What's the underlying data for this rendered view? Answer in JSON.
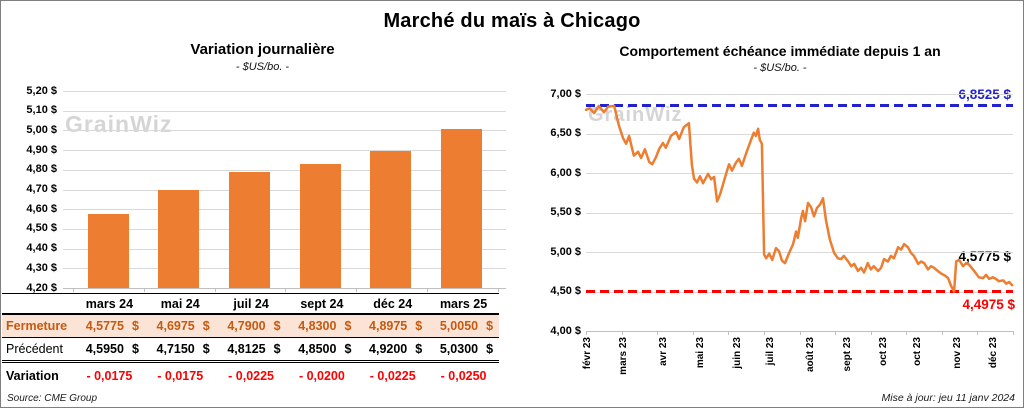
{
  "page": {
    "title": "Marché du maïs à Chicago"
  },
  "watermark": "GrainWiz",
  "footer": {
    "source": "Source: CME Group",
    "updated": "Mise à jour: jeu 11 janv 2024"
  },
  "colors": {
    "orange": "#ED7D31",
    "blue": "#2121CE",
    "red": "#FF0000",
    "grid": "#d9d9d9",
    "fermeture_bg": "#FBE4D5",
    "fermeture_text": "#C55A11",
    "watermark": "#d5d5d5"
  },
  "left_chart": {
    "title": "Variation journalière",
    "subtitle": "- $US/bo. -",
    "y_ticks": [
      "5,20 $",
      "5,10 $",
      "5,00 $",
      "4,90 $",
      "4,80 $",
      "4,70 $",
      "4,60 $",
      "4,50 $",
      "4,40 $",
      "4,30 $",
      "4,20 $"
    ]
  },
  "right_chart": {
    "title": "Comportement échéance immédiate depuis 1 an",
    "subtitle": "- $US/bo. -",
    "y_ticks": [
      "7,00 $",
      "6,50 $",
      "6,00 $",
      "5,50 $",
      "5,00 $",
      "4,50 $",
      "4,00 $"
    ],
    "max_label": "6,8525 $",
    "min_label": "4,4975 $",
    "last_label": "4,5775 $"
  },
  "table": {
    "headers": [
      "mars 24",
      "mai 24",
      "juil 24",
      "sept 24",
      "déc 24",
      "mars 25"
    ],
    "row_labels": [
      "Fermeture",
      "Précédent",
      "Variation"
    ],
    "fermeture": [
      "4,5775",
      "4,6975",
      "4,7900",
      "4,8300",
      "4,8975",
      "5,0050"
    ],
    "precedent": [
      "4,5950",
      "4,7150",
      "4,8125",
      "4,8500",
      "4,9200",
      "5,0300"
    ],
    "variation": [
      "- 0,0175",
      "- 0,0175",
      "- 0,0225",
      "- 0,0200",
      "- 0,0225",
      "- 0,0250"
    ],
    "currency": "$"
  },
  "chart_data": [
    {
      "type": "bar",
      "title": "Variation journalière",
      "unit": "$US/bo.",
      "categories": [
        "mars 24",
        "mai 24",
        "juil 24",
        "sept 24",
        "déc 24",
        "mars 25"
      ],
      "values": [
        4.5775,
        4.6975,
        4.79,
        4.83,
        4.8975,
        5.005
      ],
      "ylim": [
        4.2,
        5.2
      ],
      "ytick_step": 0.1,
      "bar_color": "#ED7D31",
      "grid": true
    },
    {
      "type": "line",
      "title": "Comportement échéance immédiate depuis 1 an",
      "unit": "$US/bo.",
      "ylim": [
        4.0,
        7.0
      ],
      "ytick_step": 0.5,
      "line_color": "#ED7D31",
      "grid": true,
      "x_tick_labels": [
        "févr 23",
        "mars 23",
        "avr 23",
        "mai 23",
        "juin 23",
        "juil 23",
        "août 23",
        "sept 23",
        "oct 23",
        "oct 23",
        "nov 23",
        "déc 23"
      ],
      "x_tick_pct": [
        0.5,
        8.9,
        18.3,
        26.9,
        35.6,
        43.3,
        52.7,
        61.4,
        69.8,
        77.8,
        87.1,
        95.6
      ],
      "ref_lines": [
        {
          "value": 6.8525,
          "label": "6,8525 $",
          "color": "#2121CE",
          "style": "dashed",
          "position": "max"
        },
        {
          "value": 4.4975,
          "label": "4,4975 $",
          "color": "#FF0000",
          "style": "dashed",
          "position": "min"
        }
      ],
      "last_value": 4.5775,
      "last_point_label": "4,5775 $",
      "points": [
        [
          0,
          6.8
        ],
        [
          0.9,
          6.82
        ],
        [
          1.9,
          6.76
        ],
        [
          3,
          6.85
        ],
        [
          4.2,
          6.77
        ],
        [
          5.2,
          6.84
        ],
        [
          6.6,
          6.85
        ],
        [
          7.7,
          6.6
        ],
        [
          8.7,
          6.44
        ],
        [
          9.4,
          6.37
        ],
        [
          10.1,
          6.47
        ],
        [
          11.2,
          6.22
        ],
        [
          12.2,
          6.27
        ],
        [
          12.9,
          6.19
        ],
        [
          13.8,
          6.3
        ],
        [
          14.8,
          6.14
        ],
        [
          15.5,
          6.11
        ],
        [
          16.4,
          6.2
        ],
        [
          17.1,
          6.3
        ],
        [
          18,
          6.38
        ],
        [
          18.7,
          6.32
        ],
        [
          19.9,
          6.47
        ],
        [
          21.1,
          6.52
        ],
        [
          21.8,
          6.43
        ],
        [
          22.9,
          6.58
        ],
        [
          24.1,
          6.63
        ],
        [
          24.8,
          6.1
        ],
        [
          25.3,
          5.93
        ],
        [
          26,
          5.88
        ],
        [
          26.7,
          5.96
        ],
        [
          27.4,
          5.87
        ],
        [
          28.6,
          5.99
        ],
        [
          29.3,
          5.92
        ],
        [
          30,
          5.95
        ],
        [
          30.7,
          5.64
        ],
        [
          31.4,
          5.73
        ],
        [
          32.8,
          5.99
        ],
        [
          33.5,
          6.11
        ],
        [
          34.2,
          6.03
        ],
        [
          35.1,
          6.13
        ],
        [
          35.8,
          6.18
        ],
        [
          36.5,
          6.09
        ],
        [
          37.7,
          6.28
        ],
        [
          38.6,
          6.41
        ],
        [
          39.3,
          6.51
        ],
        [
          39.8,
          6.47
        ],
        [
          40.3,
          6.56
        ],
        [
          40.7,
          6.42
        ],
        [
          41.2,
          6.37
        ],
        [
          41.7,
          4.97
        ],
        [
          42.2,
          4.92
        ],
        [
          42.9,
          4.98
        ],
        [
          43.6,
          4.9
        ],
        [
          44.5,
          5.05
        ],
        [
          45.2,
          5.01
        ],
        [
          45.9,
          4.89
        ],
        [
          46.6,
          4.86
        ],
        [
          47.5,
          4.98
        ],
        [
          48.5,
          5.1
        ],
        [
          49.2,
          5.26
        ],
        [
          49.6,
          5.18
        ],
        [
          50.4,
          5.43
        ],
        [
          50.8,
          5.52
        ],
        [
          51.3,
          5.39
        ],
        [
          52,
          5.62
        ],
        [
          52.7,
          5.57
        ],
        [
          53.4,
          5.45
        ],
        [
          54.1,
          5.56
        ],
        [
          54.8,
          5.6
        ],
        [
          55.5,
          5.68
        ],
        [
          56.2,
          5.4
        ],
        [
          57.1,
          5.16
        ],
        [
          58.1,
          4.99
        ],
        [
          59,
          4.92
        ],
        [
          59.7,
          4.91
        ],
        [
          60.4,
          4.95
        ],
        [
          61.4,
          4.88
        ],
        [
          62.1,
          4.82
        ],
        [
          62.8,
          4.85
        ],
        [
          63.7,
          4.76
        ],
        [
          64.4,
          4.8
        ],
        [
          65.1,
          4.74
        ],
        [
          66,
          4.86
        ],
        [
          66.7,
          4.78
        ],
        [
          67.4,
          4.82
        ],
        [
          68.4,
          4.76
        ],
        [
          69.1,
          4.8
        ],
        [
          69.8,
          4.91
        ],
        [
          70.7,
          4.88
        ],
        [
          71.4,
          4.95
        ],
        [
          72.1,
          4.92
        ],
        [
          73.1,
          5.06
        ],
        [
          73.8,
          5.03
        ],
        [
          74.5,
          5.1
        ],
        [
          75.4,
          5.06
        ],
        [
          76.1,
          4.99
        ],
        [
          76.8,
          4.95
        ],
        [
          77.8,
          4.85
        ],
        [
          78.5,
          4.88
        ],
        [
          79.2,
          4.86
        ],
        [
          80.1,
          4.78
        ],
        [
          80.8,
          4.82
        ],
        [
          81.5,
          4.8
        ],
        [
          82.4,
          4.76
        ],
        [
          83.1,
          4.73
        ],
        [
          84.1,
          4.7
        ],
        [
          84.8,
          4.67
        ],
        [
          85.5,
          4.57
        ],
        [
          86.2,
          4.5
        ],
        [
          86.7,
          4.88
        ],
        [
          87.4,
          4.9
        ],
        [
          88.3,
          4.82
        ],
        [
          89,
          4.86
        ],
        [
          89.7,
          4.84
        ],
        [
          90.6,
          4.78
        ],
        [
          91.3,
          4.73
        ],
        [
          92,
          4.68
        ],
        [
          93,
          4.67
        ],
        [
          93.7,
          4.71
        ],
        [
          94.4,
          4.66
        ],
        [
          95.3,
          4.68
        ],
        [
          96,
          4.66
        ],
        [
          96.7,
          4.63
        ],
        [
          97.7,
          4.64
        ],
        [
          98.4,
          4.6
        ],
        [
          99.1,
          4.62
        ],
        [
          99.8,
          4.58
        ]
      ]
    }
  ]
}
